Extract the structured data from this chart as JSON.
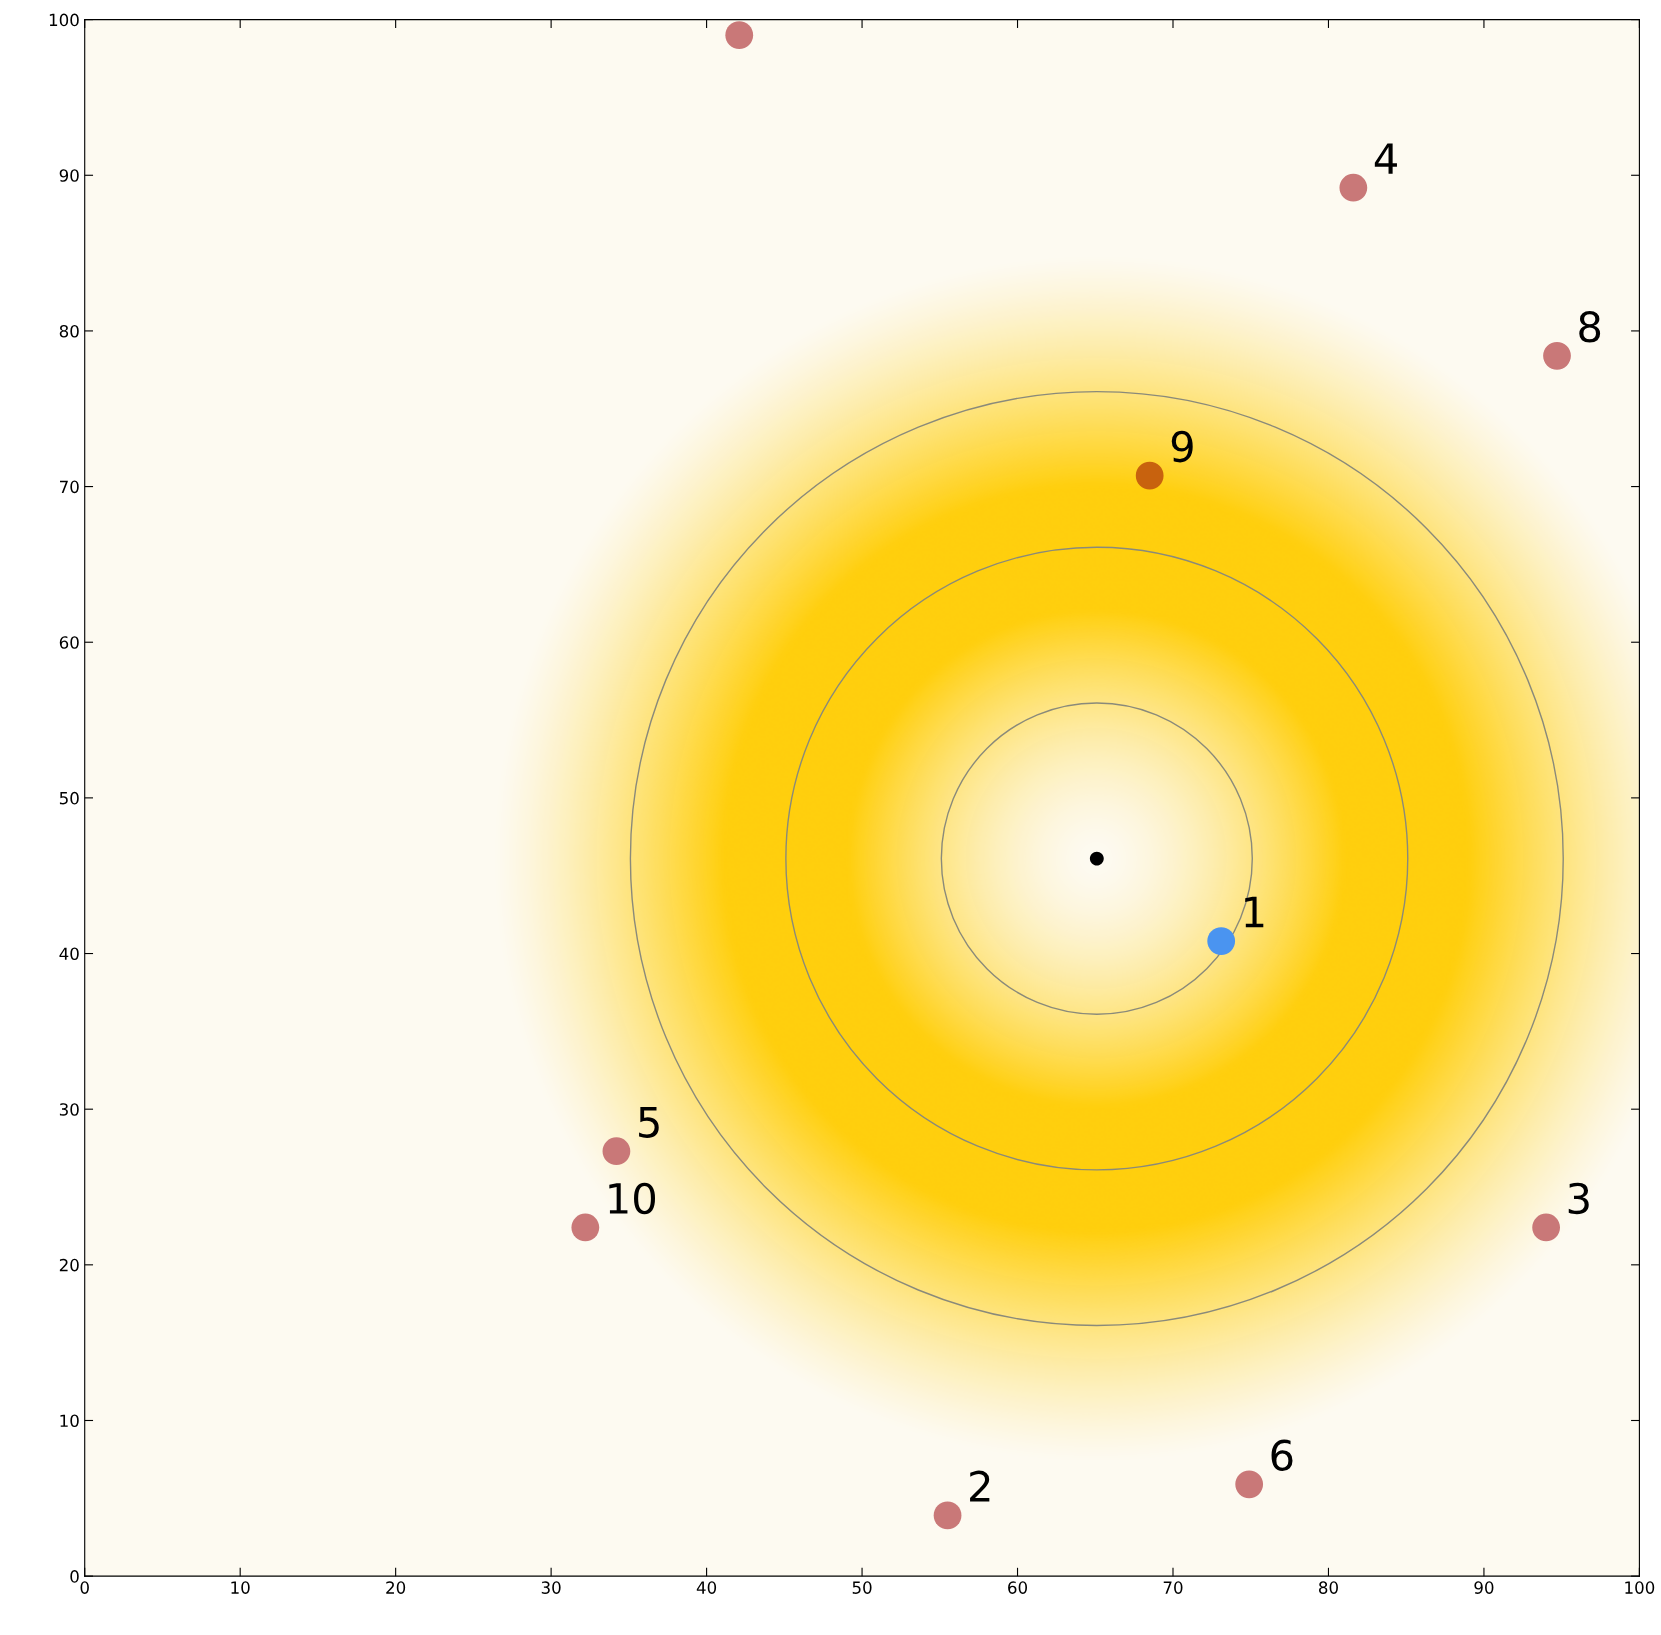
{
  "chart_data": {
    "type": "scatter",
    "x": [
      42.1,
      81.6,
      94.7,
      68.5,
      73.1,
      34.2,
      32.2,
      94.0,
      55.5,
      74.9,
      65.1
    ],
    "values": [
      99.0,
      89.2,
      78.4,
      70.7,
      40.8,
      27.3,
      22.4,
      22.4,
      3.9,
      5.9,
      46.1
    ],
    "colors": [
      "#c97878",
      "#c97878",
      "#c97878",
      "#c8620e",
      "#4a94f0",
      "#c97878",
      "#c97878",
      "#c97878",
      "#c97878",
      "#c97878",
      "#000000"
    ],
    "sizes": [
      1,
      1,
      1,
      1,
      1,
      1,
      1,
      1,
      1,
      1,
      0.25
    ],
    "marker": "circle",
    "xlim": [
      0,
      100
    ],
    "ylim": [
      0,
      100
    ],
    "xticks": [
      0,
      10,
      20,
      30,
      40,
      50,
      60,
      70,
      80,
      90,
      100
    ],
    "yticks": [
      0,
      10,
      20,
      30,
      40,
      50,
      60,
      70,
      80,
      90,
      100
    ],
    "grid": false,
    "legend": false,
    "annotations": [
      {
        "text": "4",
        "x": 81.6,
        "y": 89.2
      },
      {
        "text": "8",
        "x": 94.7,
        "y": 78.4
      },
      {
        "text": "9",
        "x": 68.5,
        "y": 70.7
      },
      {
        "text": "1",
        "x": 73.1,
        "y": 40.8
      },
      {
        "text": "5",
        "x": 34.2,
        "y": 27.3
      },
      {
        "text": "10",
        "x": 32.2,
        "y": 22.4
      },
      {
        "text": "3",
        "x": 94.0,
        "y": 22.4
      },
      {
        "text": "2",
        "x": 55.5,
        "y": 3.9
      },
      {
        "text": "6",
        "x": 74.9,
        "y": 5.9
      }
    ]
  }
}
